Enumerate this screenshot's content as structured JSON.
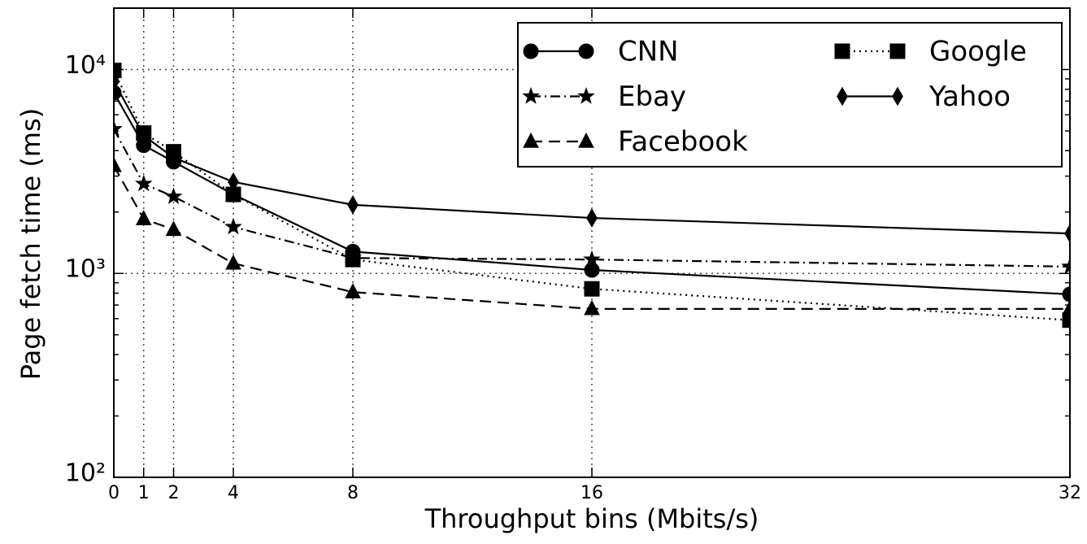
{
  "chart_data": {
    "type": "line",
    "xlabel": "Throughput bins (Mbits/s)",
    "ylabel": "Page fetch time (ms)",
    "x": [
      0,
      1,
      2,
      4,
      8,
      16,
      32
    ],
    "xlim": [
      0,
      32
    ],
    "xticks": [
      0,
      1,
      2,
      4,
      8,
      16,
      32
    ],
    "ylim": [
      100,
      20000
    ],
    "yticks": [
      {
        "value": 100,
        "label": "10²"
      },
      {
        "value": 1000,
        "label": "10³"
      },
      {
        "value": 10000,
        "label": "10⁴"
      }
    ],
    "yscale": "log",
    "grid": true,
    "legend": "upper right",
    "series": [
      {
        "name": "CNN",
        "color": "#000000",
        "linestyle": "solid",
        "marker": "circle",
        "values": [
          7700,
          4250,
          3530,
          2440,
          1280,
          1040,
          790
        ]
      },
      {
        "name": "Ebay",
        "color": "#000000",
        "linestyle": "dashdot",
        "marker": "star",
        "values": [
          5100,
          2750,
          2380,
          1690,
          1190,
          1170,
          1080
        ]
      },
      {
        "name": "Facebook",
        "color": "#000000",
        "linestyle": "dashed",
        "marker": "triangle",
        "values": [
          3370,
          1850,
          1640,
          1120,
          810,
          670,
          670
        ]
      },
      {
        "name": "Google",
        "color": "#000000",
        "linestyle": "dotted",
        "marker": "square",
        "values": [
          9900,
          4880,
          3950,
          2440,
          1170,
          840,
          590
        ]
      },
      {
        "name": "Yahoo",
        "color": "#000000",
        "linestyle": "solid",
        "marker": "diamond",
        "values": [
          8710,
          4740,
          3700,
          2810,
          2170,
          1870,
          1570
        ]
      }
    ]
  }
}
